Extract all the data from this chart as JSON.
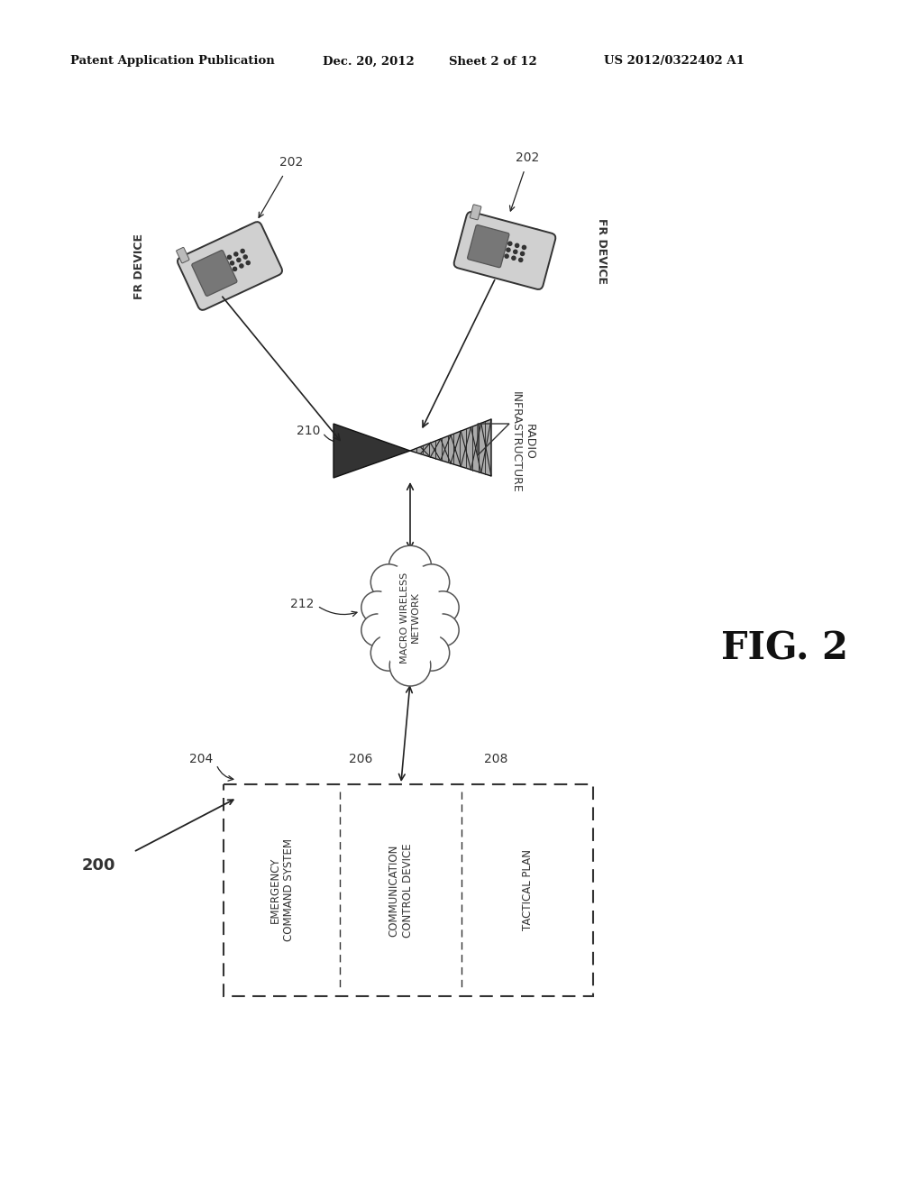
{
  "bg_color": "#ffffff",
  "header_left": "Patent Application Publication",
  "header_mid1": "Dec. 20, 2012",
  "header_mid2": "Sheet 2 of 12",
  "header_right": "US 2012/0322402 A1",
  "fig_label": "FIG. 2",
  "lbl_200": "200",
  "lbl_202a": "202",
  "lbl_202b": "202",
  "lbl_204": "204",
  "lbl_206": "206",
  "lbl_208": "208",
  "lbl_210": "210",
  "lbl_212": "212",
  "txt_fr_device_left": "FR DEVICE",
  "txt_fr_device_right": "FR DEVICE",
  "txt_radio_infra": "RADIO\nINFRASTRUCTURE",
  "txt_macro_wireless": "MACRO WIRELESS\nNETWORK",
  "txt_emergency": "EMERGENCY\nCOMMAND SYSTEM",
  "txt_comm_ctrl": "COMMUNICATION\nCONTROL DEVICE",
  "txt_tactical": "TACTICAL PLAN",
  "line_color": "#222222",
  "phone_body_color": "#cccccc",
  "phone_screen_color": "#888888",
  "phone_ear_color": "#bbbbbb",
  "antenna_fill": "#555555",
  "cloud_edge": "#555555",
  "box_line": "#333333"
}
